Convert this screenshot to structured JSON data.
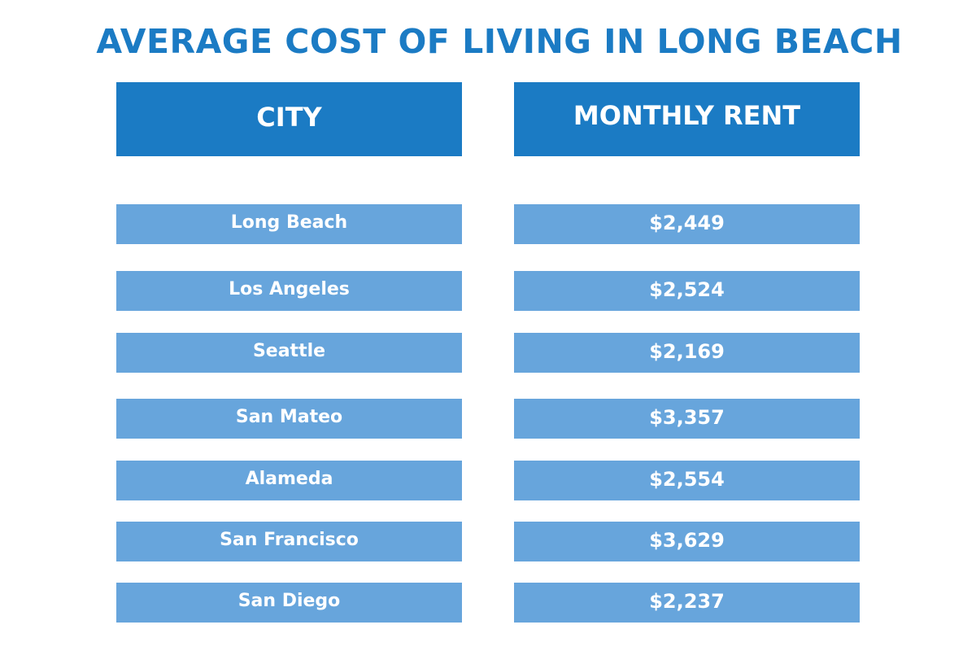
{
  "chart_data": {
    "type": "table",
    "title": "AVERAGE COST OF LIVING IN LONG BEACH",
    "columns": [
      "CITY",
      "MONTHLY RENT"
    ],
    "rows": [
      {
        "city": "Long Beach",
        "rent": "$2,449"
      },
      {
        "city": "Los Angeles",
        "rent": "$2,524"
      },
      {
        "city": "Seattle",
        "rent": "$2,169"
      },
      {
        "city": "San Mateo",
        "rent": "$3,357"
      },
      {
        "city": "Alameda",
        "rent": "$2,554"
      },
      {
        "city": "San Francisco",
        "rent": "$3,629"
      },
      {
        "city": "San Diego",
        "rent": "$2,237"
      }
    ]
  },
  "colors": {
    "title": "#1b7bc4",
    "header_bg": "#1b7bc4",
    "row_bg": "#67a5dc",
    "text_on_fill": "#ffffff"
  }
}
